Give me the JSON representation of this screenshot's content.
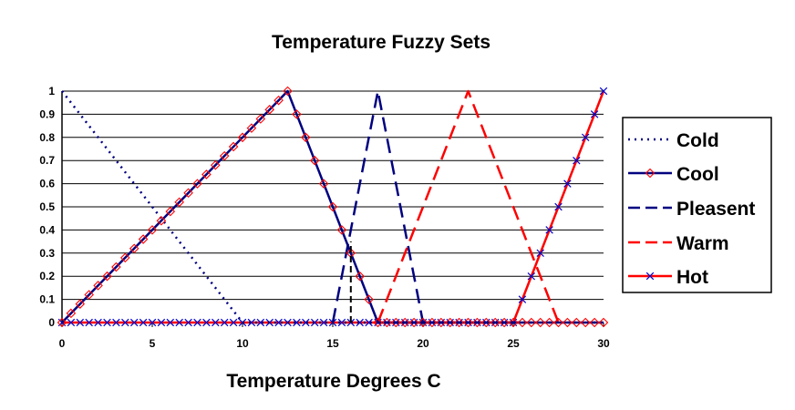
{
  "chart_data": {
    "type": "line",
    "title": "Temperature Fuzzy Sets",
    "xlabel": "Temperature Degrees C",
    "ylabel": "",
    "xlim": [
      0,
      30
    ],
    "ylim": [
      0,
      1
    ],
    "xticks": [
      0,
      5,
      10,
      15,
      20,
      25,
      30
    ],
    "yticks": [
      0,
      0.1,
      0.2,
      0.3,
      0.4,
      0.5,
      0.6,
      0.7,
      0.8,
      0.9,
      1
    ],
    "grid": "horizontal",
    "legend_position": "right",
    "vertical_line": {
      "x": 16,
      "y": [
        0,
        0.35
      ],
      "color": "#000000",
      "style": "dashed"
    },
    "series": [
      {
        "name": "Cold",
        "color": "#000080",
        "dash": "2,5",
        "width": 2.5,
        "marker": "none",
        "points": [
          [
            0,
            1
          ],
          [
            10,
            0
          ],
          [
            30,
            0
          ]
        ]
      },
      {
        "name": "Cool",
        "color": "#000080",
        "dash": "",
        "width": 2.5,
        "marker": "diamond",
        "marker_color": "#ff0000",
        "points": [
          [
            0,
            0
          ],
          [
            12.5,
            1
          ],
          [
            17.5,
            0
          ],
          [
            30,
            0
          ]
        ]
      },
      {
        "name": "Pleasent",
        "color": "#000080",
        "dash": "16,8",
        "width": 2.5,
        "marker": "none",
        "points": [
          [
            15,
            0
          ],
          [
            17.5,
            1
          ],
          [
            20,
            0
          ]
        ]
      },
      {
        "name": "Warm",
        "color": "#ff0000",
        "dash": "16,8",
        "width": 2.5,
        "marker": "none",
        "points": [
          [
            17.5,
            0
          ],
          [
            22.5,
            1
          ],
          [
            27.5,
            0
          ]
        ]
      },
      {
        "name": "Hot",
        "color": "#ff0000",
        "dash": "",
        "width": 2.5,
        "marker": "x",
        "marker_color": "#0000cc",
        "points": [
          [
            0,
            0
          ],
          [
            25,
            0
          ],
          [
            30,
            1
          ]
        ]
      }
    ]
  }
}
